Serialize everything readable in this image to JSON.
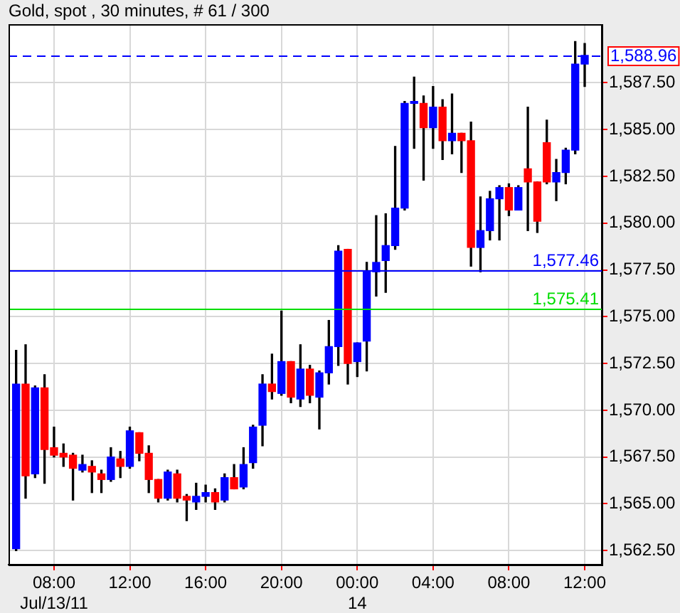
{
  "chart_data": {
    "type": "candlestick",
    "title": "Gold, spot , 30 minutes, # 61 / 300",
    "x": [
      "--07-13T06:00",
      "--07-13T06:30",
      "--07-13T07:00",
      "--07-13T07:30",
      "--07-13T08:00",
      "--07-13T08:30",
      "--07-13T09:00",
      "--07-13T09:30",
      "--07-13T10:00",
      "--07-13T10:30",
      "--07-13T11:00",
      "--07-13T11:30",
      "--07-13T12:00",
      "--07-13T12:30",
      "--07-13T13:00",
      "--07-13T13:30",
      "--07-13T14:00",
      "--07-13T14:30",
      "--07-13T15:00",
      "--07-13T15:30",
      "--07-13T16:00",
      "--07-13T16:30",
      "--07-13T17:00",
      "--07-13T17:30",
      "--07-13T18:00",
      "--07-13T18:30",
      "--07-13T19:00",
      "--07-13T19:30",
      "--07-13T20:00",
      "--07-13T20:30",
      "--07-13T21:00",
      "--07-13T21:30",
      "--07-13T22:00",
      "--07-13T22:30",
      "--07-13T23:00",
      "--07-13T23:30",
      "--07-14T00:00",
      "--07-14T00:30",
      "--07-14T01:00",
      "--07-14T01:30",
      "--07-14T02:00",
      "--07-14T02:30",
      "--07-14T03:00",
      "--07-14T03:30",
      "--07-14T04:00",
      "--07-14T04:30",
      "--07-14T05:00",
      "--07-14T05:30",
      "--07-14T06:00",
      "--07-14T06:30",
      "--07-14T07:00",
      "--07-14T07:30",
      "--07-14T08:00",
      "--07-14T08:30",
      "--07-14T09:00",
      "--07-14T09:30",
      "--07-14T10:00",
      "--07-14T10:30",
      "--07-14T11:00",
      "--07-14T11:30",
      "--07-14T12:00"
    ],
    "ohlc": [
      [
        1562.6,
        1573.2,
        1562.5,
        1571.4
      ],
      [
        1571.4,
        1573.5,
        1565.3,
        1566.5
      ],
      [
        1566.6,
        1571.3,
        1566.4,
        1571.2
      ],
      [
        1571.2,
        1571.9,
        1566.1,
        1567.9
      ],
      [
        1568.0,
        1569.1,
        1567.5,
        1567.6
      ],
      [
        1567.7,
        1568.2,
        1567.0,
        1567.5
      ],
      [
        1567.6,
        1567.7,
        1565.2,
        1566.9
      ],
      [
        1566.8,
        1567.6,
        1566.7,
        1567.1
      ],
      [
        1567.0,
        1567.3,
        1565.6,
        1566.7
      ],
      [
        1566.6,
        1566.8,
        1565.6,
        1566.3
      ],
      [
        1566.3,
        1568.0,
        1566.2,
        1567.5
      ],
      [
        1567.4,
        1567.8,
        1566.4,
        1567.0
      ],
      [
        1567.0,
        1569.1,
        1566.9,
        1568.9
      ],
      [
        1568.8,
        1568.8,
        1567.3,
        1567.7
      ],
      [
        1567.7,
        1568.1,
        1565.6,
        1566.3
      ],
      [
        1566.3,
        1566.3,
        1565.1,
        1565.3
      ],
      [
        1565.3,
        1566.8,
        1565.2,
        1566.7
      ],
      [
        1566.6,
        1566.8,
        1565.1,
        1565.3
      ],
      [
        1565.4,
        1565.5,
        1564.1,
        1565.2
      ],
      [
        1565.1,
        1566.1,
        1564.7,
        1565.4
      ],
      [
        1565.4,
        1566.0,
        1565.1,
        1565.6
      ],
      [
        1565.6,
        1565.8,
        1564.7,
        1565.1
      ],
      [
        1565.2,
        1566.6,
        1565.1,
        1566.4
      ],
      [
        1566.4,
        1567.1,
        1565.8,
        1565.8
      ],
      [
        1565.9,
        1568.0,
        1565.8,
        1567.1
      ],
      [
        1567.2,
        1569.2,
        1566.9,
        1569.1
      ],
      [
        1569.2,
        1571.9,
        1568.1,
        1571.4
      ],
      [
        1571.4,
        1573.0,
        1570.6,
        1571.0
      ],
      [
        1570.9,
        1575.3,
        1570.8,
        1572.6
      ],
      [
        1572.6,
        1572.6,
        1570.4,
        1570.7
      ],
      [
        1570.6,
        1573.5,
        1570.2,
        1572.2
      ],
      [
        1572.2,
        1572.4,
        1570.4,
        1570.8
      ],
      [
        1570.7,
        1572.1,
        1569.0,
        1572.0
      ],
      [
        1572.0,
        1574.8,
        1571.4,
        1573.4
      ],
      [
        1573.4,
        1578.8,
        1572.4,
        1578.5
      ],
      [
        1578.6,
        1578.6,
        1571.4,
        1572.5
      ],
      [
        1572.6,
        1573.6,
        1571.8,
        1573.6
      ],
      [
        1573.7,
        1577.9,
        1572.1,
        1577.4
      ],
      [
        1577.4,
        1580.4,
        1576.1,
        1577.9
      ],
      [
        1578.0,
        1580.5,
        1576.3,
        1578.8
      ],
      [
        1578.8,
        1584.1,
        1578.6,
        1580.8
      ],
      [
        1580.8,
        1586.5,
        1580.7,
        1586.4
      ],
      [
        1586.4,
        1587.8,
        1584.0,
        1586.5
      ],
      [
        1586.4,
        1586.8,
        1582.3,
        1585.1
      ],
      [
        1585.1,
        1587.3,
        1584.0,
        1586.2
      ],
      [
        1586.2,
        1586.6,
        1583.4,
        1584.4
      ],
      [
        1584.4,
        1586.9,
        1583.7,
        1584.8
      ],
      [
        1584.8,
        1584.8,
        1582.7,
        1584.4
      ],
      [
        1584.4,
        1585.4,
        1577.7,
        1578.7
      ],
      [
        1578.7,
        1581.4,
        1577.4,
        1579.6
      ],
      [
        1579.6,
        1581.7,
        1579.1,
        1581.3
      ],
      [
        1581.3,
        1582.0,
        1579.1,
        1581.9
      ],
      [
        1581.9,
        1582.1,
        1580.4,
        1580.7
      ],
      [
        1580.7,
        1582.0,
        1580.7,
        1581.9
      ],
      [
        1582.9,
        1586.2,
        1579.6,
        1582.2
      ],
      [
        1582.2,
        1582.2,
        1579.5,
        1580.1
      ],
      [
        1584.3,
        1585.5,
        1582.1,
        1582.2
      ],
      [
        1582.2,
        1583.4,
        1581.2,
        1582.7
      ],
      [
        1582.7,
        1584.0,
        1582.1,
        1583.9
      ],
      [
        1583.9,
        1589.7,
        1583.7,
        1588.5
      ],
      [
        1588.5,
        1589.6,
        1587.3,
        1588.96
      ]
    ],
    "colors": [
      "#0000ff",
      "#ff0000",
      "#0000ff",
      "#ff0000",
      "#ff0000",
      "#ff0000",
      "#ff0000",
      "#0000ff",
      "#ff0000",
      "#ff0000",
      "#0000ff",
      "#ff0000",
      "#0000ff",
      "#ff0000",
      "#ff0000",
      "#ff0000",
      "#0000ff",
      "#ff0000",
      "#ff0000",
      "#0000ff",
      "#0000ff",
      "#ff0000",
      "#0000ff",
      "#ff0000",
      "#0000ff",
      "#0000ff",
      "#0000ff",
      "#ff0000",
      "#0000ff",
      "#ff0000",
      "#0000ff",
      "#ff0000",
      "#0000ff",
      "#0000ff",
      "#0000ff",
      "#ff0000",
      "#0000ff",
      "#0000ff",
      "#0000ff",
      "#0000ff",
      "#0000ff",
      "#0000ff",
      "#0000ff",
      "#ff0000",
      "#0000ff",
      "#ff0000",
      "#0000ff",
      "#ff0000",
      "#ff0000",
      "#0000ff",
      "#0000ff",
      "#0000ff",
      "#ff0000",
      "#0000ff",
      "#ff0000",
      "#ff0000",
      "#ff0000",
      "#0000ff",
      "#0000ff",
      "#0000ff",
      "#0000ff"
    ],
    "xlim": [
      "--07-13T05:36",
      "--07-14T12:54"
    ],
    "xticks": [
      {
        "value": "--07-13T08:00",
        "label": "08:00\nJul/13/11"
      },
      {
        "value": "--07-13T12:00",
        "label": "12:00"
      },
      {
        "value": "--07-13T16:00",
        "label": "16:00"
      },
      {
        "value": "--07-13T20:00",
        "label": "20:00"
      },
      {
        "value": "--07-14T00:00",
        "label": "00:00\n14"
      },
      {
        "value": "--07-14T04:00",
        "label": "04:00"
      },
      {
        "value": "--07-14T08:00",
        "label": "08:00"
      },
      {
        "value": "--07-14T12:00",
        "label": "12:00"
      }
    ],
    "ylim": [
      1561.75,
      1590.6
    ],
    "yticks": [
      {
        "value": 1562.5,
        "label": "1,562.50"
      },
      {
        "value": 1565,
        "label": "1,565.00"
      },
      {
        "value": 1567.5,
        "label": "1,567.50"
      },
      {
        "value": 1570,
        "label": "1,570.00"
      },
      {
        "value": 1572.5,
        "label": "1,572.50"
      },
      {
        "value": 1575,
        "label": "1,575.00"
      },
      {
        "value": 1577.5,
        "label": "1,577.50"
      },
      {
        "value": 1580,
        "label": "1,580.00"
      },
      {
        "value": 1582.5,
        "label": "1,582.50"
      },
      {
        "value": 1585,
        "label": "1,585.00"
      },
      {
        "value": 1587.5,
        "label": "1,587.50"
      }
    ],
    "ref_lines": [
      {
        "axis": "y",
        "value": 1588.96,
        "label": "1,588.96",
        "color": "#0000ff",
        "line_style": "dashed"
      },
      {
        "axis": "y",
        "value": 1577.46,
        "label": "1,577.46",
        "color": "#0000ff",
        "line_style": "solid"
      },
      {
        "axis": "y",
        "value": 1575.41,
        "label": "1,575.41",
        "color": "#00dd00",
        "line_style": "solid"
      }
    ],
    "grid": true
  }
}
